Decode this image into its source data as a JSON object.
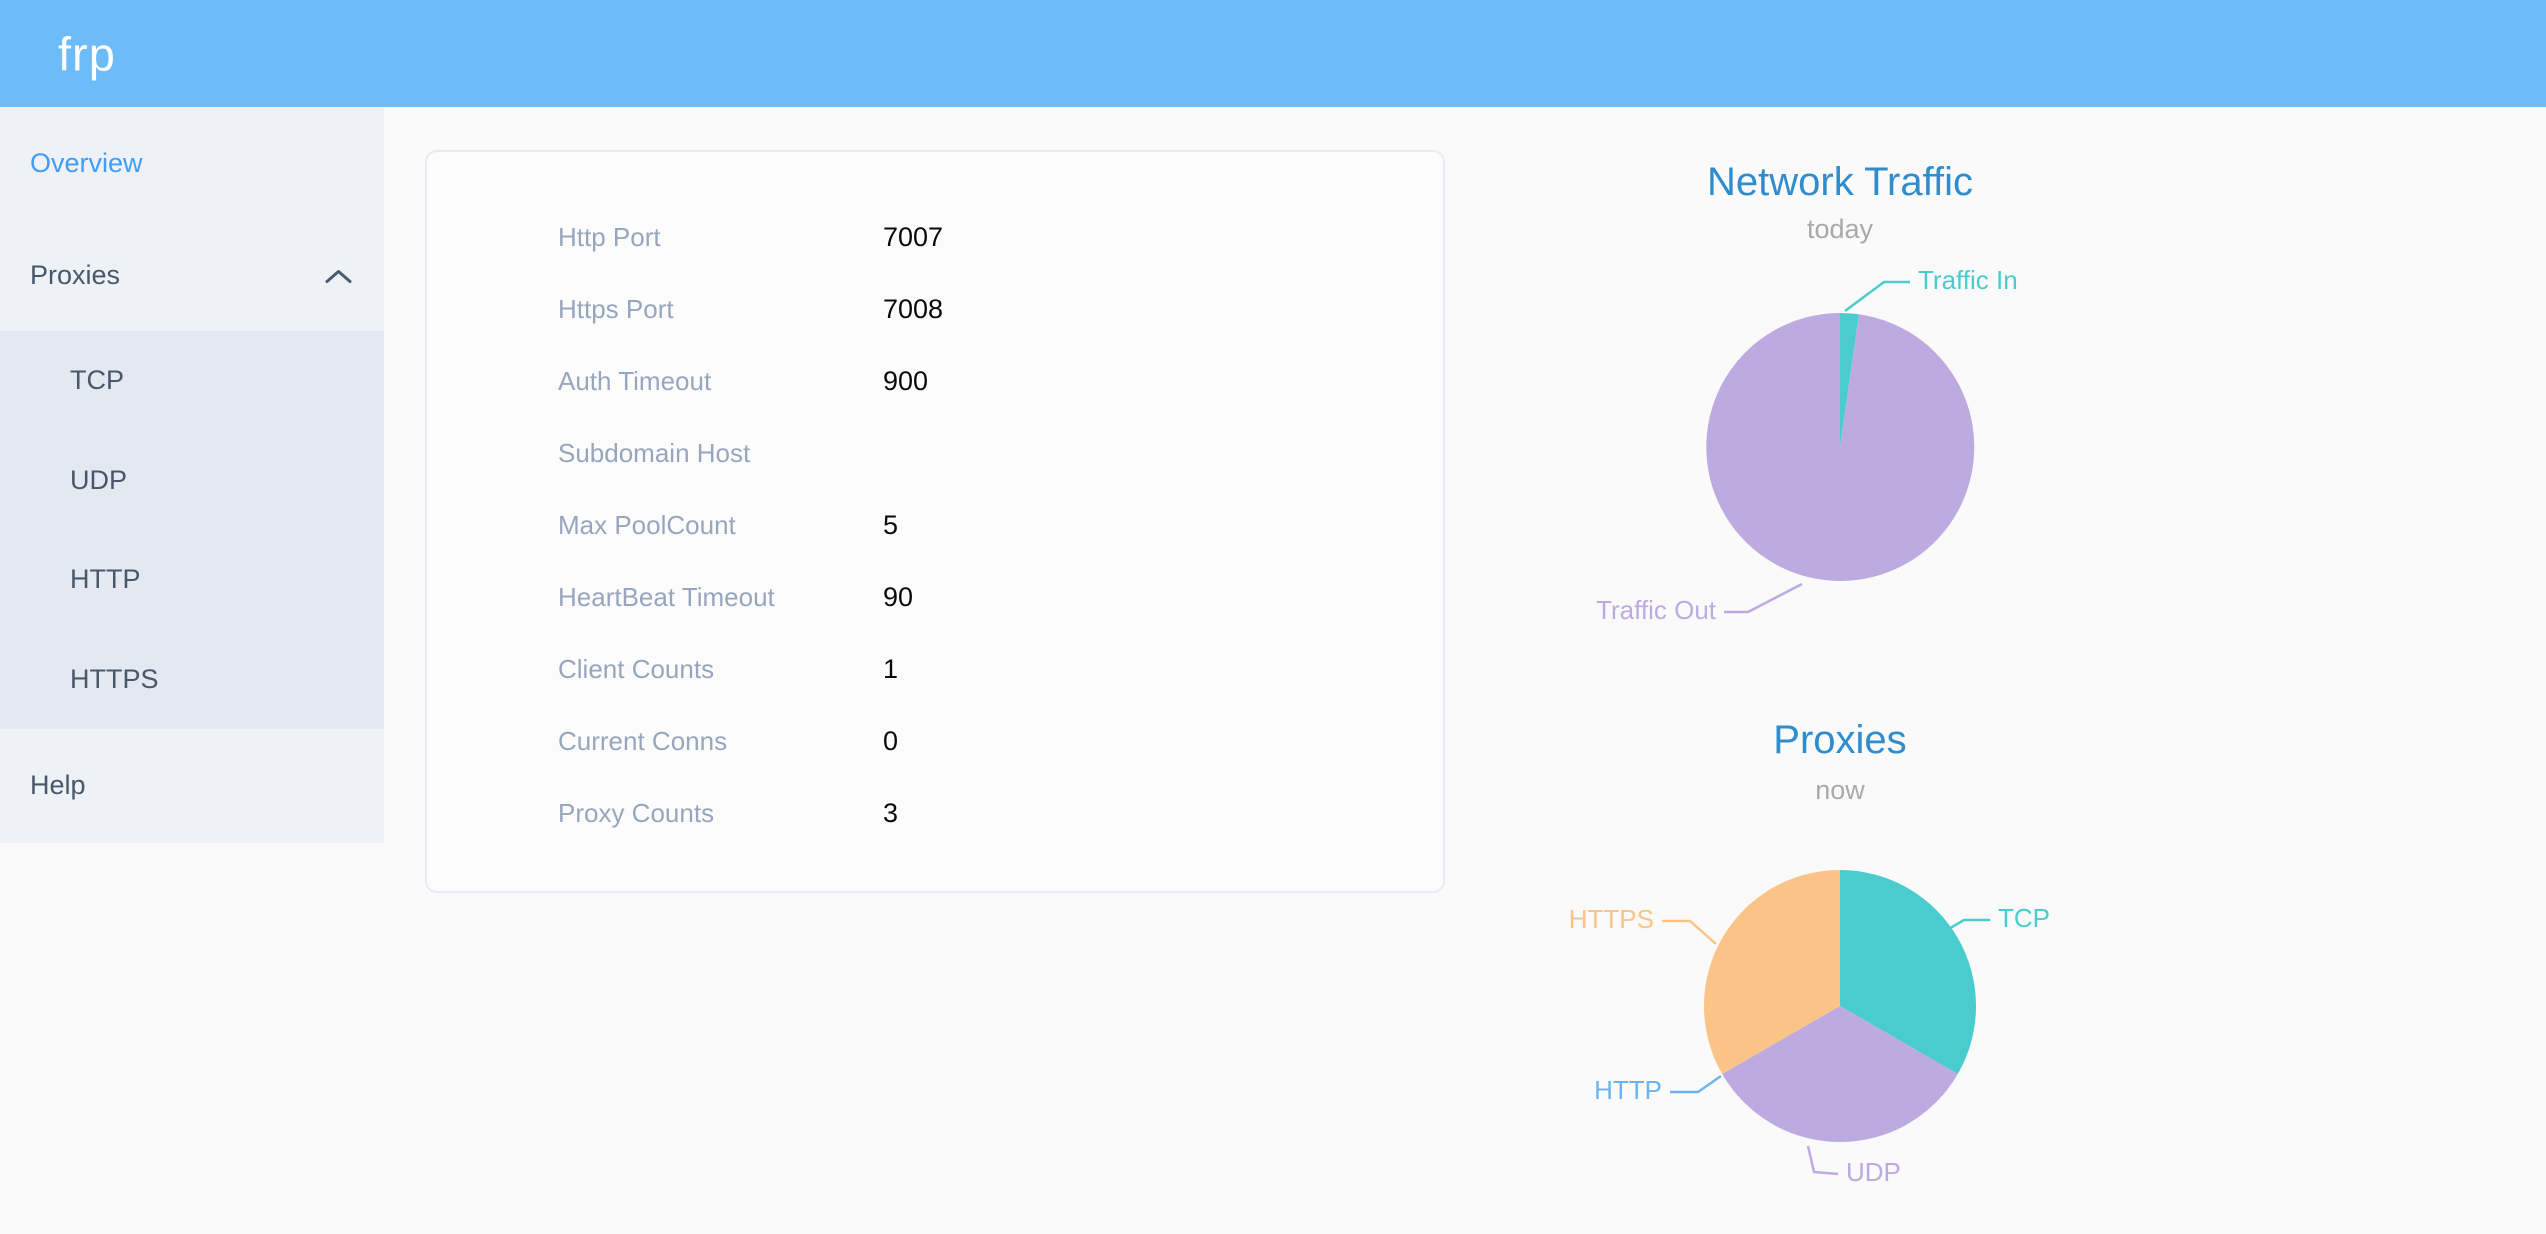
{
  "app": {
    "logo": "frp"
  },
  "colors": {
    "header_bg": "#6ebbfa",
    "sidebar_bg": "#eef1f6",
    "submenu_bg": "#e4e8f1",
    "menu_text": "#48576a",
    "active_menu_text": "#419df8",
    "chart_title": "#2f8dce",
    "chart_subtitle": "#a9a9a9",
    "teal": "#4accce",
    "purple": "#bdaae1",
    "blue": "#6db3f2",
    "orange": "#fac489",
    "config_label_gray": "#98a6bd"
  },
  "sidebar": {
    "overview": {
      "label": "Overview",
      "active": true
    },
    "proxies": {
      "label": "Proxies",
      "expanded": true
    },
    "submenu": {
      "tcp": {
        "label": "TCP"
      },
      "udp": {
        "label": "UDP"
      },
      "http": {
        "label": "HTTP"
      },
      "https": {
        "label": "HTTPS"
      }
    },
    "help": {
      "label": "Help"
    }
  },
  "server_info": {
    "rows": [
      {
        "label": "Http Port",
        "value": "7007"
      },
      {
        "label": "Https Port",
        "value": "7008"
      },
      {
        "label": "Auth Timeout",
        "value": "900"
      },
      {
        "label": "Subdomain Host",
        "value": ""
      },
      {
        "label": "Max PoolCount",
        "value": "5"
      },
      {
        "label": "HeartBeat Timeout",
        "value": "90"
      },
      {
        "label": "Client Counts",
        "value": "1"
      },
      {
        "label": "Current Conns",
        "value": "0"
      },
      {
        "label": "Proxy Counts",
        "value": "3"
      }
    ]
  },
  "chart_data": [
    {
      "type": "pie",
      "title": "Network Traffic",
      "subtitle": "today",
      "unit": "percent-of-circle",
      "legend_position": "callout-labels",
      "series": [
        {
          "name": "Traffic In",
          "value": 2.25,
          "color": "#4accce"
        },
        {
          "name": "Traffic Out",
          "value": 97.75,
          "color": "#bdaae1"
        }
      ]
    },
    {
      "type": "pie",
      "title": "Proxies",
      "subtitle": "now",
      "unit": "proxy-count",
      "legend_position": "callout-labels",
      "series": [
        {
          "name": "TCP",
          "value": 1,
          "color": "#4accce"
        },
        {
          "name": "UDP",
          "value": 1,
          "color": "#bdaae1"
        },
        {
          "name": "HTTP",
          "value": 0,
          "color": "#6db3f2"
        },
        {
          "name": "HTTPS",
          "value": 1,
          "color": "#fac489"
        }
      ]
    }
  ]
}
